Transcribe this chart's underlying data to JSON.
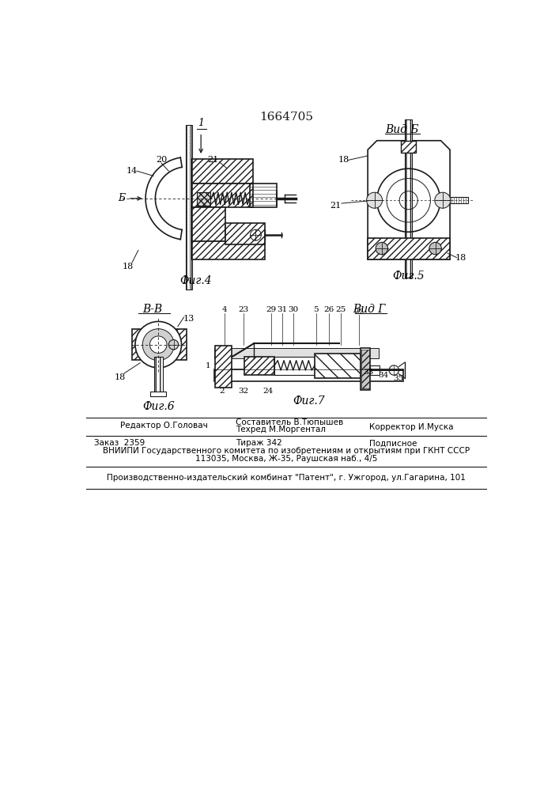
{
  "patent_number": "1664705",
  "background_color": "#ffffff",
  "line_color": "#1a1a1a",
  "fig_width": 7.07,
  "fig_height": 10.0,
  "fig4_caption": "Фиг.4",
  "fig5_caption": "Фиг.5",
  "fig6_caption": "Фиг.6",
  "fig7_caption": "Фиг.7",
  "view_b_label": "Вид Б",
  "view_g_label": "Вид Г",
  "section_bb_label": "В-В"
}
